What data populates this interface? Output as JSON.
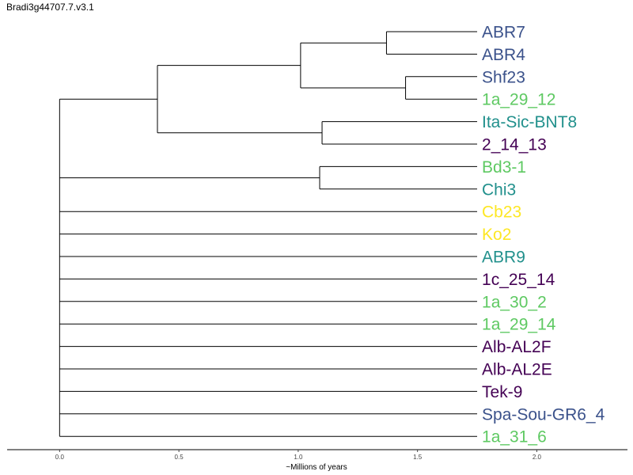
{
  "title": "Bradi3g44707.7.v3.1",
  "colors": {
    "dark_purple": "#440154",
    "blue": "#3b528b",
    "teal": "#21908c",
    "green": "#5ec962",
    "yellow": "#fde725",
    "branch": "#000000"
  },
  "chart_data": {
    "type": "dendrogram",
    "title": "Bradi3g44707.7.v3.1",
    "xlabel": "~Millions of years",
    "xlim": [
      -0.22,
      2.38
    ],
    "x_ticks": [
      "0.0",
      "0.5",
      "1.0",
      "1.5",
      "2.0"
    ],
    "leaves": [
      {
        "name": "ABR7",
        "color": "#3b528b"
      },
      {
        "name": "ABR4",
        "color": "#3b528b"
      },
      {
        "name": "Shf23",
        "color": "#3b528b"
      },
      {
        "name": "1a_29_12",
        "color": "#5ec962"
      },
      {
        "name": "Ita-Sic-BNT8",
        "color": "#21908c"
      },
      {
        "name": "2_14_13",
        "color": "#440154"
      },
      {
        "name": "Bd3-1",
        "color": "#5ec962"
      },
      {
        "name": "Chi3",
        "color": "#21908c"
      },
      {
        "name": "Cb23",
        "color": "#fde725"
      },
      {
        "name": "Ko2",
        "color": "#fde725"
      },
      {
        "name": "ABR9",
        "color": "#21908c"
      },
      {
        "name": "1c_25_14",
        "color": "#440154"
      },
      {
        "name": "1a_30_2",
        "color": "#5ec962"
      },
      {
        "name": "1a_29_14",
        "color": "#5ec962"
      },
      {
        "name": "Alb-AL2F",
        "color": "#440154"
      },
      {
        "name": "Alb-AL2E",
        "color": "#440154"
      },
      {
        "name": "Tek-9",
        "color": "#440154"
      },
      {
        "name": "Spa-Sou-GR6_4",
        "color": "#3b528b"
      },
      {
        "name": "1a_31_6",
        "color": "#5ec962"
      }
    ],
    "leaf_depth": 1.75,
    "nodes": [
      {
        "id": "n_abr7_abr4",
        "depth": 1.37,
        "children": [
          {
            "leaf": 0
          },
          {
            "leaf": 1
          }
        ]
      },
      {
        "id": "n_shf_1a",
        "depth": 1.45,
        "children": [
          {
            "leaf": 2
          },
          {
            "leaf": 3
          }
        ]
      },
      {
        "id": "n_top4",
        "depth": 1.01,
        "children": [
          {
            "node": "n_abr7_abr4"
          },
          {
            "node": "n_shf_1a"
          }
        ]
      },
      {
        "id": "n_ita_214",
        "depth": 1.1,
        "children": [
          {
            "leaf": 4
          },
          {
            "leaf": 5
          }
        ]
      },
      {
        "id": "n_top6",
        "depth": 0.41,
        "children": [
          {
            "node": "n_top4"
          },
          {
            "node": "n_ita_214"
          }
        ]
      },
      {
        "id": "n_bd_chi",
        "depth": 1.09,
        "children": [
          {
            "leaf": 6
          },
          {
            "leaf": 7
          }
        ]
      },
      {
        "id": "root",
        "depth": 0.0,
        "children": [
          {
            "node": "n_top6"
          },
          {
            "node": "n_bd_chi"
          },
          {
            "leaf": 8
          },
          {
            "leaf": 9
          },
          {
            "leaf": 10
          },
          {
            "leaf": 11
          },
          {
            "leaf": 12
          },
          {
            "leaf": 13
          },
          {
            "leaf": 14
          },
          {
            "leaf": 15
          },
          {
            "leaf": 16
          },
          {
            "leaf": 17
          },
          {
            "leaf": 18
          }
        ]
      }
    ]
  }
}
